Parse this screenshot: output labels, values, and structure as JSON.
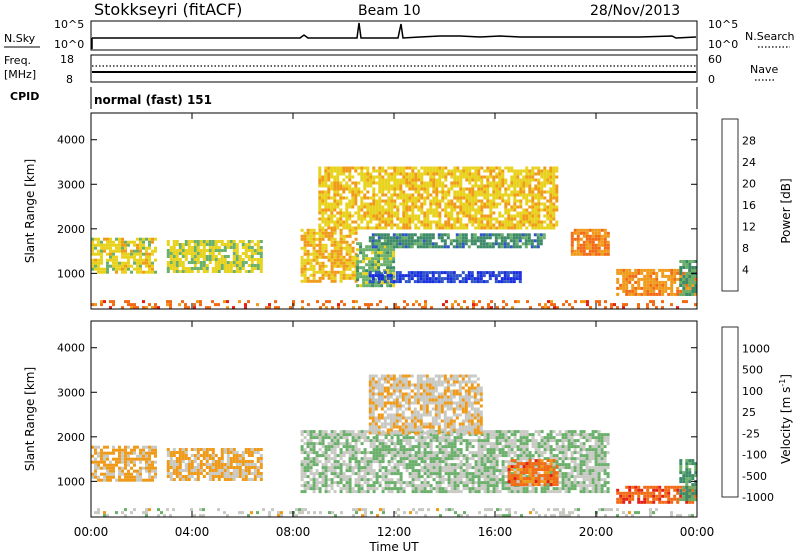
{
  "header": {
    "station": "Stokkseyri (fitACF)",
    "beam": "Beam 10",
    "date": "28/Nov/2013"
  },
  "panels": {
    "nsky": {
      "label": "N.Sky",
      "left_ticks": [
        "10^5",
        "10^0"
      ],
      "right_ticks": [
        "10^5",
        "10^0"
      ],
      "right_label": "N.Search"
    },
    "freq": {
      "label_line1": "Freq.",
      "label_line2": "[MHz]",
      "left_ticks": [
        "18",
        "8"
      ],
      "right_ticks": [
        "60",
        "0"
      ],
      "right_label": "Nave"
    },
    "cpid": {
      "label": "CPID",
      "mode": "normal (fast) 151"
    }
  },
  "colors": {
    "power_scale": [
      "#1a2ee0",
      "#2f55c8",
      "#3d8a68",
      "#6ab06a",
      "#e8d21e",
      "#f09a1a",
      "#f26a14",
      "#e41e14"
    ],
    "velocity_scale": [
      "#1a2ee0",
      "#2f55c8",
      "#3d8a68",
      "#6ab06a",
      "#c9c9c4",
      "#f09a1a",
      "#f26a14",
      "#e41e14"
    ]
  },
  "chart_data": [
    {
      "type": "heatmap",
      "panel": "power",
      "ylabel": "Slant Range [km]",
      "ylim": [
        200,
        4600
      ],
      "y_ticks": [
        "4000",
        "3000",
        "2000",
        "1000"
      ],
      "xlim_hours": [
        0,
        24
      ],
      "colorbar": {
        "label": "Power [dB]",
        "ticks": [
          "28",
          "24",
          "20",
          "16",
          "12",
          "8",
          "4"
        ],
        "range": [
          0,
          32
        ]
      },
      "regions": [
        {
          "t0": 0.0,
          "t1": 2.5,
          "r0": 1050,
          "r1": 1800,
          "value": 14
        },
        {
          "t0": 3.0,
          "t1": 6.8,
          "r0": 1050,
          "r1": 1750,
          "value": 15
        },
        {
          "t0": 8.3,
          "t1": 10.5,
          "r0": 850,
          "r1": 2000,
          "value": 12
        },
        {
          "t0": 10.5,
          "t1": 12.0,
          "r0": 700,
          "r1": 1700,
          "value": 18
        },
        {
          "t0": 11.0,
          "t1": 17.0,
          "r0": 800,
          "r1": 1050,
          "value": 28
        },
        {
          "t0": 11.0,
          "t1": 18.0,
          "r0": 1600,
          "r1": 1900,
          "value": 22
        },
        {
          "t0": 9.0,
          "t1": 18.5,
          "r0": 2000,
          "r1": 3400,
          "value": 13
        },
        {
          "t0": 19.0,
          "t1": 20.5,
          "r0": 1400,
          "r1": 2000,
          "value": 8
        },
        {
          "t0": 20.8,
          "t1": 24.0,
          "r0": 550,
          "r1": 1100,
          "value": 9
        },
        {
          "t0": 23.3,
          "t1": 24.0,
          "r0": 500,
          "r1": 1300,
          "value": 20
        },
        {
          "t0": 0.0,
          "t1": 24.0,
          "r0": 200,
          "r1": 400,
          "value": 6
        }
      ]
    },
    {
      "type": "heatmap",
      "panel": "velocity",
      "ylabel": "Slant Range [km]",
      "ylim": [
        200,
        4600
      ],
      "y_ticks": [
        "4000",
        "3000",
        "2000",
        "1000"
      ],
      "xlim_hours": [
        0,
        24
      ],
      "xlabel": "Time UT",
      "x_ticks": [
        "00:00",
        "04:00",
        "08:00",
        "12:00",
        "16:00",
        "20:00",
        "00:00"
      ],
      "colorbar": {
        "label": "Velocity [m s^-1]",
        "ticks": [
          "1000",
          "500",
          "100",
          "25",
          "-25",
          "-100",
          "-500",
          "-1000"
        ],
        "range": [
          -1000,
          1000
        ]
      },
      "regions": [
        {
          "t0": 0.0,
          "t1": 2.5,
          "r0": 1050,
          "r1": 1800,
          "value": -300
        },
        {
          "t0": 3.0,
          "t1": 6.8,
          "r0": 1050,
          "r1": 1750,
          "value": -300
        },
        {
          "t0": 8.3,
          "t1": 20.5,
          "r0": 800,
          "r1": 2150,
          "value": 0
        },
        {
          "t0": 11.0,
          "t1": 15.5,
          "r0": 2100,
          "r1": 3400,
          "value": -200
        },
        {
          "t0": 16.5,
          "t1": 18.5,
          "r0": 900,
          "r1": 1500,
          "value": -600
        },
        {
          "t0": 20.8,
          "t1": 24.0,
          "r0": 500,
          "r1": 900,
          "value": -700
        },
        {
          "t0": 23.3,
          "t1": 24.0,
          "r0": 600,
          "r1": 1500,
          "value": 300
        },
        {
          "t0": 0.0,
          "t1": 24.0,
          "r0": 200,
          "r1": 400,
          "value": -100
        }
      ]
    }
  ]
}
